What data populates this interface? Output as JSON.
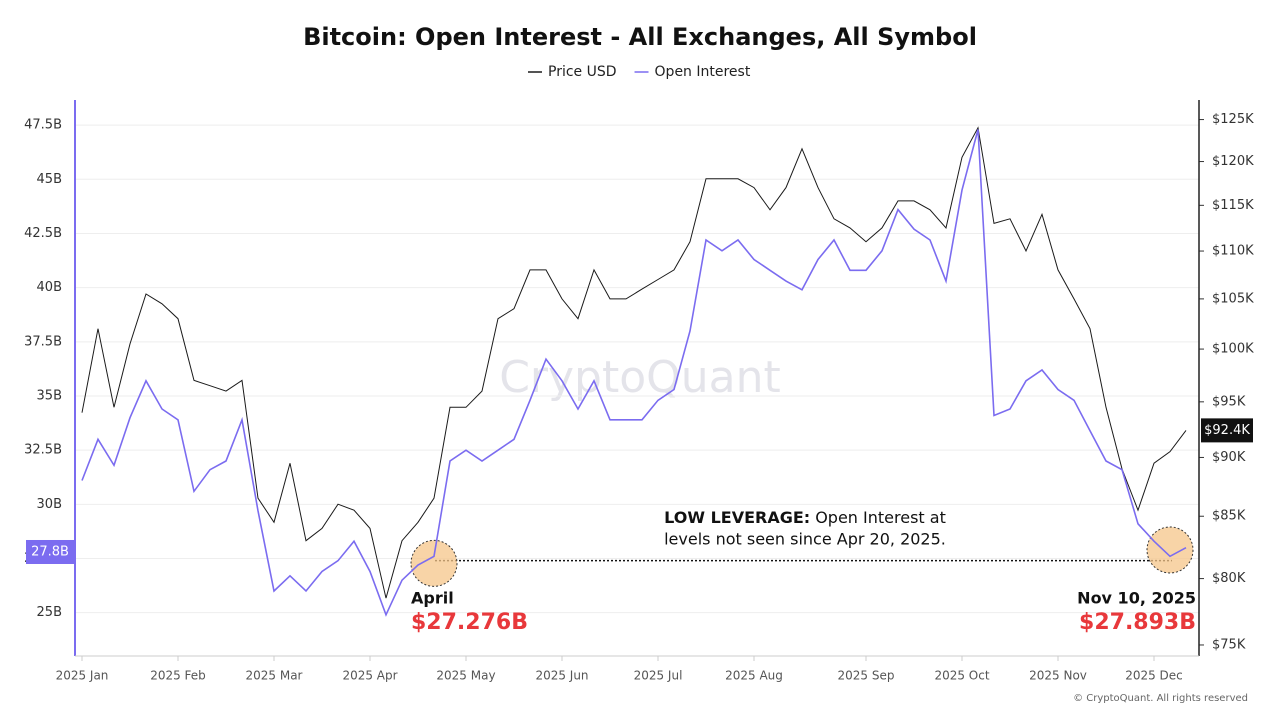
{
  "chart_data": {
    "type": "line",
    "title": "Bitcoin: Open Interest - All Exchanges, All Symbol",
    "categories": [
      "2025 Jan",
      null,
      null,
      null,
      null,
      null,
      "2025 Feb",
      null,
      null,
      null,
      null,
      null,
      "2025 Mar",
      null,
      null,
      null,
      null,
      null,
      "2025 Apr",
      null,
      null,
      null,
      null,
      null,
      "2025 May",
      null,
      null,
      null,
      null,
      null,
      "2025 Jun",
      null,
      null,
      null,
      null,
      null,
      "2025 Jul",
      null,
      null,
      null,
      null,
      null,
      "2025 Aug",
      null,
      null,
      null,
      null,
      null,
      null,
      "2025 Sep",
      null,
      null,
      null,
      null,
      null,
      "2025 Oct",
      null,
      null,
      null,
      null,
      null,
      "2025 Nov",
      null,
      null,
      null,
      null,
      null,
      "2025 Dec",
      null,
      null
    ],
    "series": [
      {
        "name": "Price USD",
        "color": "#1a1a1a",
        "axis": "y2",
        "values": [
          94000,
          102000,
          94500,
          100500,
          105500,
          104500,
          103000,
          97000,
          96500,
          96000,
          97000,
          86500,
          84500,
          89500,
          83000,
          84000,
          86000,
          85500,
          84000,
          78500,
          83000,
          84500,
          86500,
          94500,
          94500,
          96000,
          103000,
          104000,
          108000,
          108000,
          105000,
          103000,
          108000,
          105000,
          105000,
          106000,
          107000,
          108000,
          111000,
          118000,
          118000,
          118000,
          117000,
          114500,
          117000,
          121500,
          117000,
          113500,
          112500,
          111000,
          112500,
          115500,
          115500,
          114500,
          112500,
          120500,
          124000,
          113000,
          113500,
          110000,
          114000,
          108000,
          105000,
          102000,
          94500,
          89000,
          85500,
          89500,
          90500,
          92400
        ]
      },
      {
        "name": "Open Interest",
        "color": "#7b6cf0",
        "values": [
          31.1,
          33,
          31.8,
          34,
          35.7,
          34.4,
          33.9,
          30.6,
          31.6,
          32,
          33.9,
          29.7,
          26,
          26.7,
          26,
          26.9,
          27.4,
          28.3,
          26.9,
          24.9,
          26.5,
          27.2,
          27.6,
          32,
          32.5,
          32,
          32.5,
          33,
          34.8,
          36.7,
          35.7,
          34.4,
          35.7,
          33.9,
          33.9,
          33.9,
          34.8,
          35.3,
          38,
          42.2,
          41.7,
          42.2,
          41.3,
          40.8,
          40.3,
          39.9,
          41.3,
          42.2,
          40.8,
          40.8,
          41.7,
          43.6,
          42.7,
          42.2,
          40.3,
          44.5,
          47.3,
          34.1,
          34.4,
          35.7,
          36.2,
          35.3,
          34.8,
          33.4,
          32,
          31.6,
          29.1,
          28.3,
          27.6,
          28
        ]
      }
    ],
    "ylim": [
      23,
      48.66
    ],
    "yticks": [
      {
        "value": 25,
        "label": "25B"
      },
      {
        "value": 27.5,
        "label": "27.5B"
      },
      {
        "value": 30,
        "label": "30B"
      },
      {
        "value": 32.5,
        "label": "32.5B"
      },
      {
        "value": 35,
        "label": "35B"
      },
      {
        "value": 37.5,
        "label": "37.5B"
      },
      {
        "value": 40,
        "label": "40B"
      },
      {
        "value": 42.5,
        "label": "42.5B"
      },
      {
        "value": 45,
        "label": "45B"
      },
      {
        "value": 47.5,
        "label": "47.5B"
      }
    ],
    "y2lim": [
      74200,
      127400
    ],
    "y2log": true,
    "y2ticks": [
      {
        "value": 75000,
        "label": "$75K"
      },
      {
        "value": 80000,
        "label": "$80K"
      },
      {
        "value": 85000,
        "label": "$85K"
      },
      {
        "value": 90000,
        "label": "$90K"
      },
      {
        "value": 95000,
        "label": "$95K"
      },
      {
        "value": 100000,
        "label": "$100K"
      },
      {
        "value": 105000,
        "label": "$105K"
      },
      {
        "value": 110000,
        "label": "$110K"
      },
      {
        "value": 115000,
        "label": "$115K"
      },
      {
        "value": 120000,
        "label": "$120K"
      },
      {
        "value": 125000,
        "label": "$125K"
      }
    ],
    "grid": true,
    "legend": "top",
    "oi_marker": {
      "value": 27.8,
      "label": "27.8B"
    },
    "price_marker": {
      "value": 92400,
      "label": "$92.4K"
    },
    "reference_line": 27.4,
    "annotation": {
      "bold": "LOW LEVERAGE:",
      "lines": [
        "Open Interest at",
        "levels not seen since Apr 20, 2025."
      ]
    },
    "callouts": [
      {
        "date": "April",
        "value": 27.276,
        "value_label": "$27.276B"
      },
      {
        "date": "Nov 10, 2025",
        "value": 27.893,
        "value_label": "$27.893B"
      }
    ],
    "watermark": "CryptoQuant",
    "copyright": "© CryptoQuant. All rights reserved"
  }
}
